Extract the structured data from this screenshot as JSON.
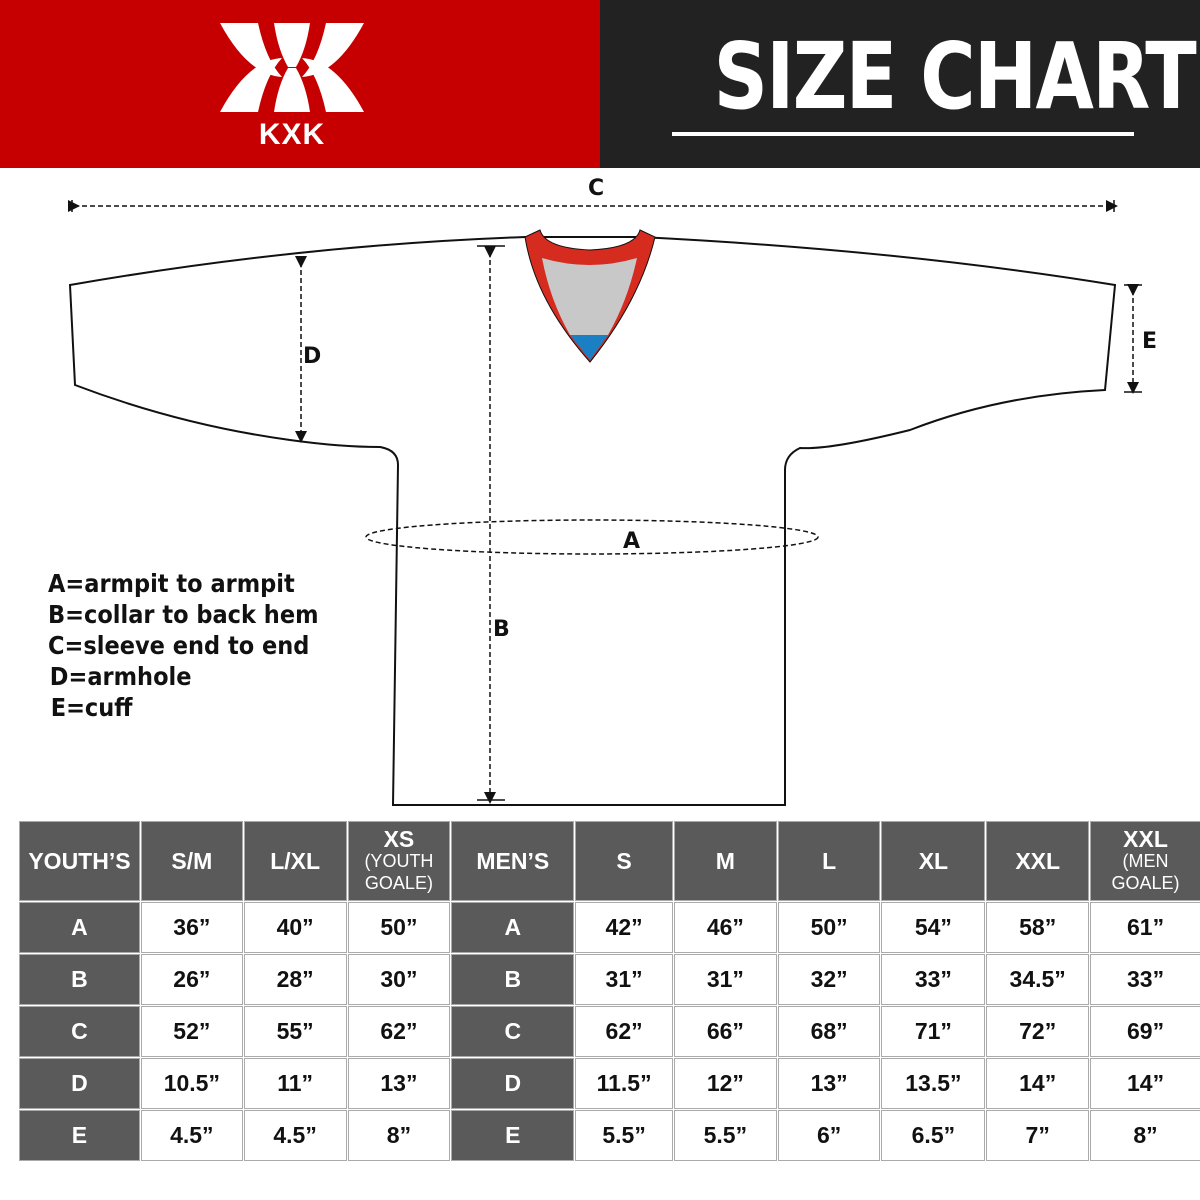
{
  "header": {
    "brand": "KXK",
    "title": "SIZE CHART",
    "colors": {
      "red": "#c60000",
      "dark": "#222222"
    }
  },
  "diagram": {
    "labels": {
      "a": "A",
      "b": "B",
      "c": "C",
      "d": "D",
      "e": "E"
    }
  },
  "legend": [
    "A=armpit to armpit",
    "B=collar to back hem",
    "C=sleeve end to end",
    "D=armhole",
    "E=cuff"
  ],
  "table": {
    "youth": {
      "header": "YOUTH’S",
      "sizes": [
        {
          "main": "S/M"
        },
        {
          "main": "L/XL"
        },
        {
          "main": "XS",
          "sub": "(YOUTH GOALE)"
        }
      ]
    },
    "men": {
      "header": "MEN’S",
      "sizes": [
        {
          "main": "S"
        },
        {
          "main": "M"
        },
        {
          "main": "L"
        },
        {
          "main": "XL"
        },
        {
          "main": "XXL"
        },
        {
          "main": "XXL",
          "sub": "(MEN GOALE)"
        }
      ]
    },
    "rows": [
      {
        "key": "A",
        "youth": [
          "36”",
          "40”",
          "50”"
        ],
        "men": [
          "42”",
          "46”",
          "50”",
          "54”",
          "58”",
          "61”"
        ]
      },
      {
        "key": "B",
        "youth": [
          "26”",
          "28”",
          "30”"
        ],
        "men": [
          "31”",
          "31”",
          "32”",
          "33”",
          "34.5”",
          "33”"
        ]
      },
      {
        "key": "C",
        "youth": [
          "52”",
          "55”",
          "62”"
        ],
        "men": [
          "62”",
          "66”",
          "68”",
          "71”",
          "72”",
          "69”"
        ]
      },
      {
        "key": "D",
        "youth": [
          "10.5”",
          "11”",
          "13”"
        ],
        "men": [
          "11.5”",
          "12”",
          "13”",
          "13.5”",
          "14”",
          "14”"
        ]
      },
      {
        "key": "E",
        "youth": [
          "4.5”",
          "4.5”",
          "8”"
        ],
        "men": [
          "5.5”",
          "5.5”",
          "6”",
          "6.5”",
          "7”",
          "8”"
        ]
      }
    ]
  }
}
